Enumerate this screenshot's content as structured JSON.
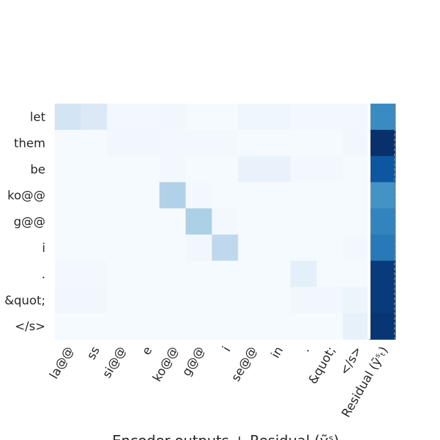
{
  "chart_data": {
    "type": "heatmap",
    "title": "",
    "xlabel": "Encoder outputs + Residual (ỹˢ)",
    "ylabel": "",
    "grid": false,
    "legend": "none",
    "colormap": "Blues",
    "value_range": [
      0,
      1
    ],
    "rows": [
      "let",
      "them",
      "be",
      "ko@@",
      "g@@",
      "i",
      ".",
      "&quot;",
      "</s>"
    ],
    "columns": [
      "la@@",
      "ss",
      "si@@",
      "e",
      "ko@@",
      "g@@",
      "i",
      "se@@",
      "in",
      ".",
      "&quot;",
      "</s>",
      "Residual (ỹˢₜ)"
    ],
    "values": [
      [
        0.18,
        0.14,
        0.02,
        0.02,
        0.03,
        0.01,
        0.01,
        0.04,
        0.04,
        0.02,
        0.02,
        0.02,
        0.65
      ],
      [
        0.01,
        0.01,
        0.03,
        0.03,
        0.02,
        0.02,
        0.02,
        0.01,
        0.01,
        0.01,
        0.01,
        0.03,
        1.0
      ],
      [
        0.01,
        0.01,
        0.01,
        0.01,
        0.02,
        0.01,
        0.01,
        0.07,
        0.07,
        0.02,
        0.02,
        0.01,
        0.85
      ],
      [
        0.01,
        0.01,
        0.01,
        0.01,
        0.32,
        0.02,
        0.01,
        0.01,
        0.01,
        0.01,
        0.01,
        0.01,
        0.62
      ],
      [
        0.01,
        0.01,
        0.01,
        0.01,
        0.01,
        0.33,
        0.02,
        0.01,
        0.01,
        0.01,
        0.01,
        0.01,
        0.68
      ],
      [
        0.01,
        0.01,
        0.01,
        0.01,
        0.01,
        0.03,
        0.27,
        0.01,
        0.01,
        0.01,
        0.01,
        0.02,
        0.72
      ],
      [
        0.02,
        0.02,
        0.01,
        0.01,
        0.01,
        0.01,
        0.01,
        0.01,
        0.01,
        0.09,
        0.01,
        0.01,
        0.96
      ],
      [
        0.03,
        0.03,
        0.01,
        0.01,
        0.01,
        0.01,
        0.01,
        0.01,
        0.01,
        0.03,
        0.03,
        0.05,
        0.96
      ],
      [
        0.01,
        0.01,
        0.01,
        0.01,
        0.01,
        0.01,
        0.01,
        0.01,
        0.01,
        0.01,
        0.01,
        0.08,
        0.98
      ]
    ]
  }
}
